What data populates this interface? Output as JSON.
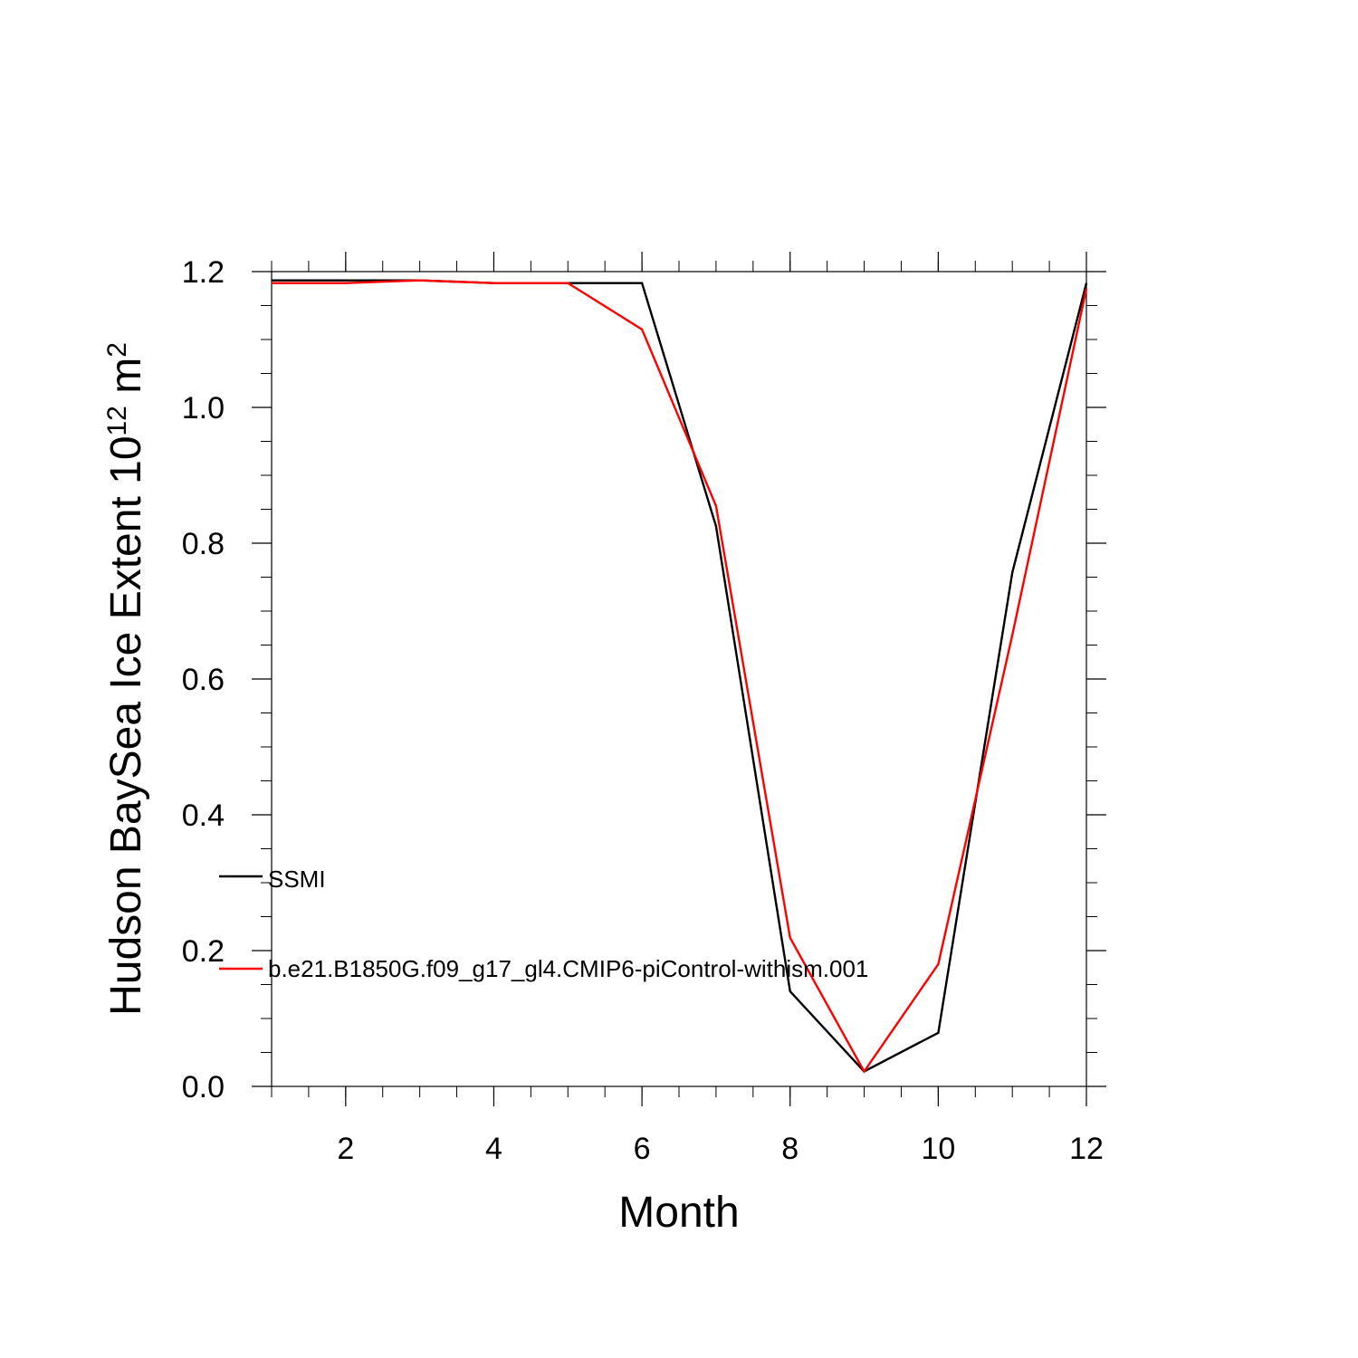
{
  "chart_data": {
    "type": "line",
    "xlabel": "Month",
    "ylabel_main": "Hudson BaySea Ice Extent 10",
    "ylabel_sup": "12",
    "ylabel_unit": " m",
    "ylabel_unit_sup": "2",
    "xlim": [
      1,
      12
    ],
    "ylim": [
      0,
      1.2
    ],
    "xticks": [
      2,
      4,
      6,
      8,
      10,
      12
    ],
    "yticks": [
      0.0,
      0.2,
      0.4,
      0.6,
      0.8,
      1.0,
      1.2
    ],
    "ytick_labels": [
      "0.0",
      "0.2",
      "0.4",
      "0.6",
      "0.8",
      "1.0",
      "1.2"
    ],
    "x": [
      1,
      2,
      3,
      4,
      5,
      6,
      7,
      8,
      9,
      10,
      11,
      12
    ],
    "legend_placement": "lower-left",
    "series": [
      {
        "name": "SSMI",
        "color": "#000000",
        "values": [
          1.187,
          1.187,
          1.187,
          1.183,
          1.183,
          1.183,
          0.825,
          0.14,
          0.022,
          0.079,
          0.757,
          1.183
        ]
      },
      {
        "name": "b.e21.B1850G.f09_g17_gl4.CMIP6-piControl-withism.001",
        "color": "#ff0000",
        "values": [
          1.183,
          1.183,
          1.187,
          1.183,
          1.183,
          1.115,
          0.855,
          0.219,
          0.022,
          0.18,
          0.665,
          1.175
        ]
      }
    ]
  }
}
